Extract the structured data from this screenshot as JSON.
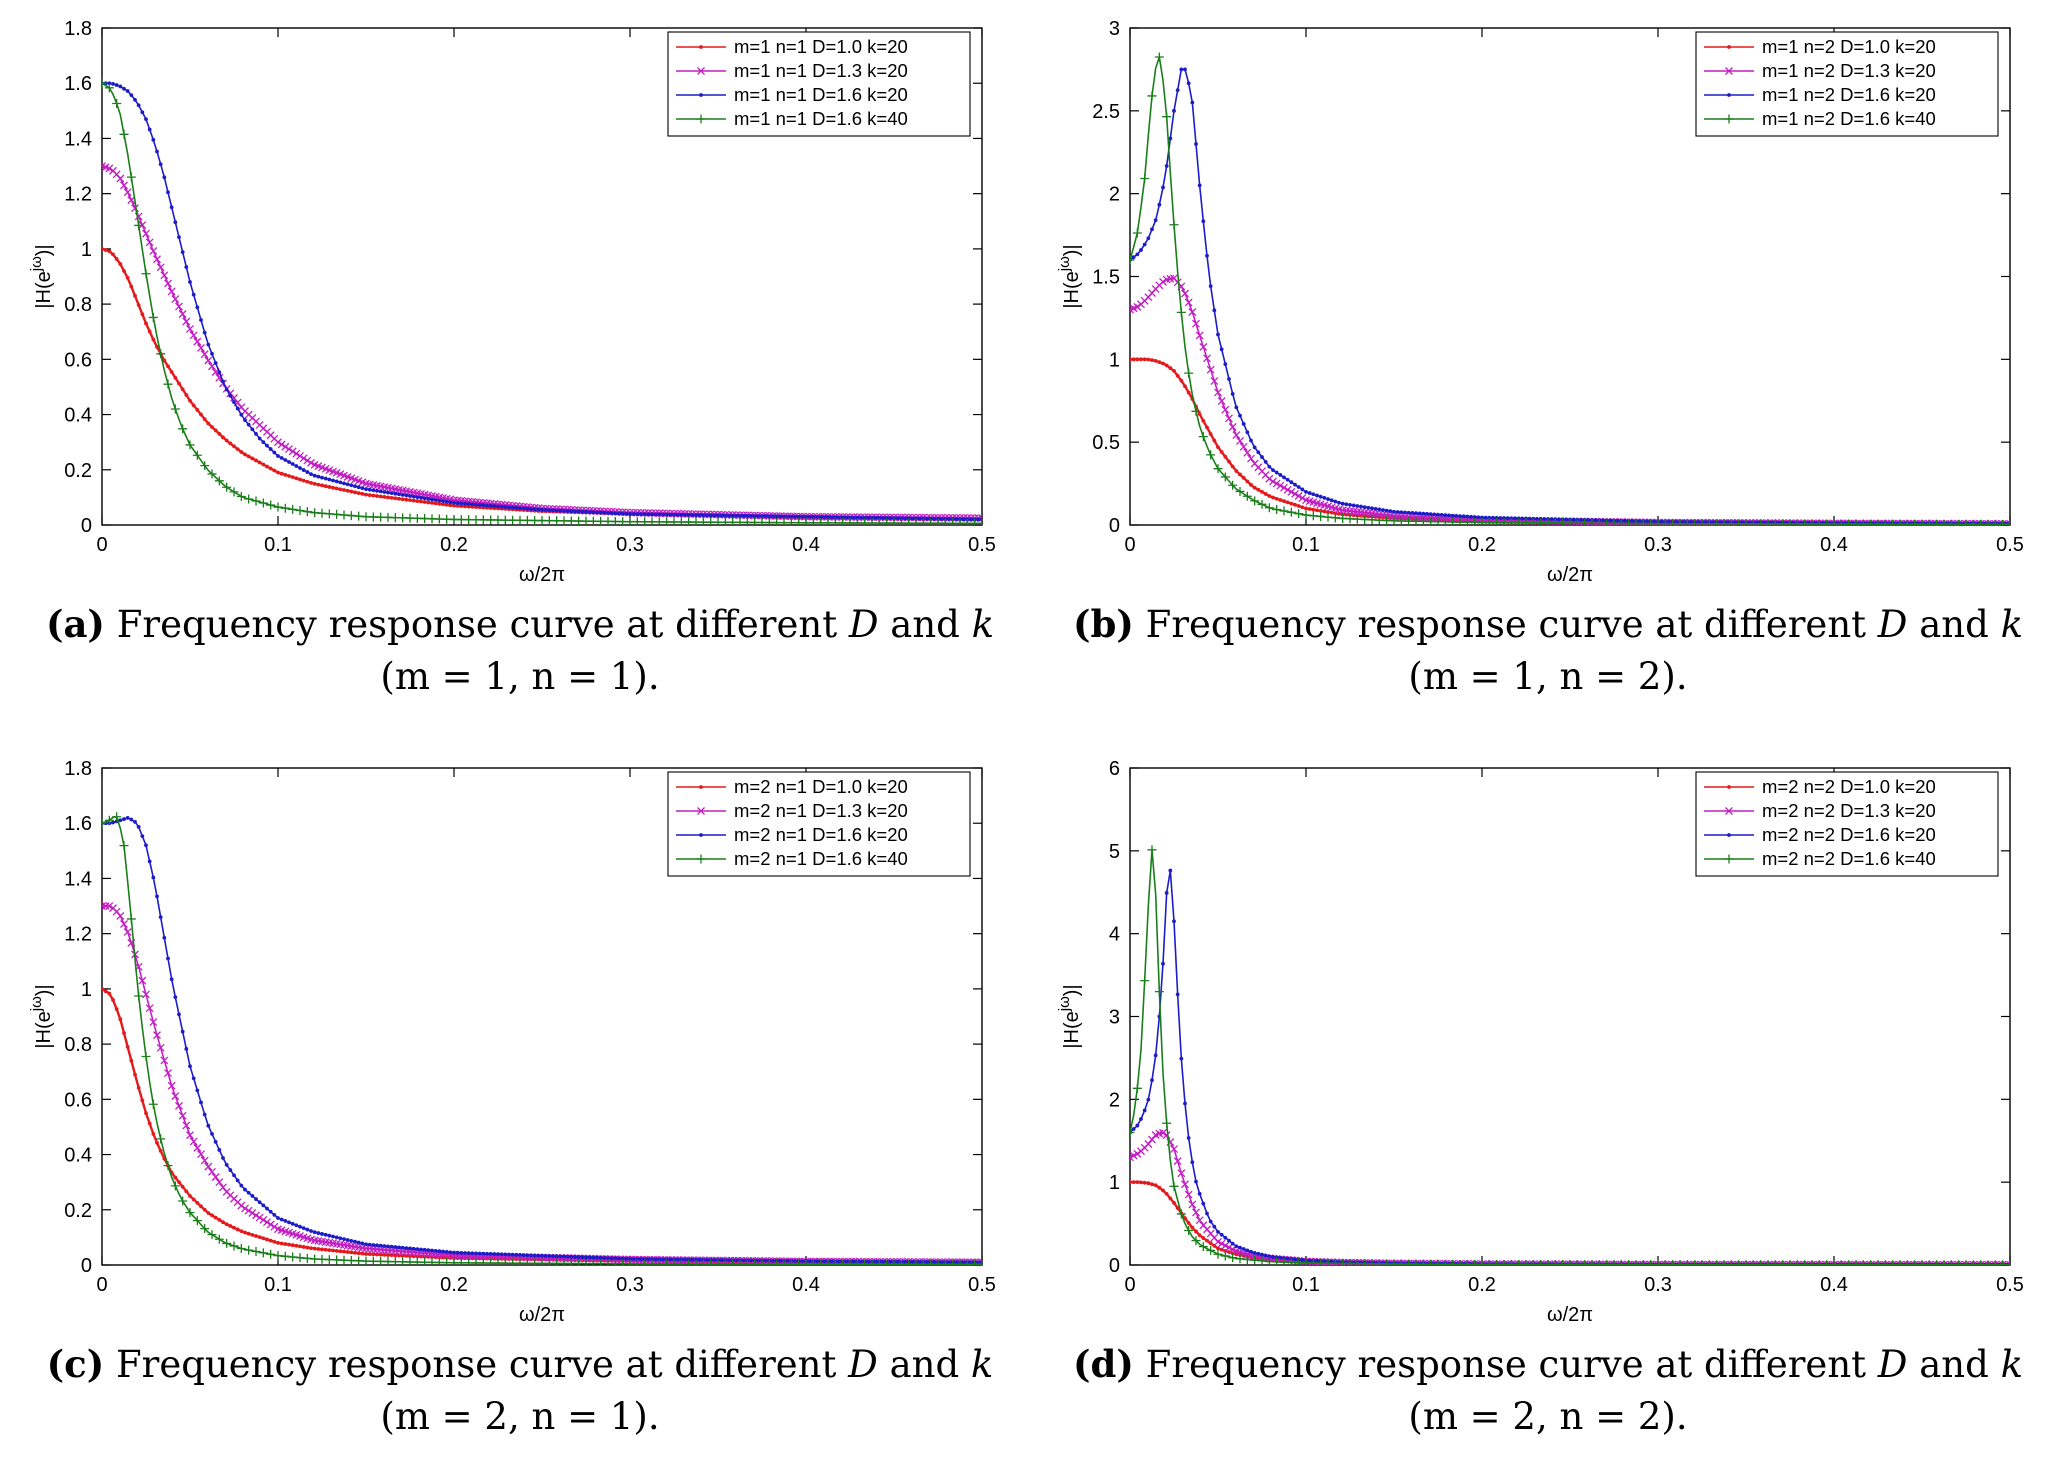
{
  "xlabel": "ω/2π",
  "ylabel": "|H(e",
  "ylabel_sup": "jω",
  "ylabel_end": ")|",
  "caption_mid": "Frequency response curve at different",
  "caption_D": "D",
  "caption_and": "and",
  "caption_k": "k",
  "colors": {
    "red": "#e41a1c",
    "magenta": "#c21fc2",
    "blue": "#1c1cc8",
    "green": "#1a7f1a"
  },
  "chart_data": [
    {
      "panel": "a",
      "label": "(a)",
      "params": "(m = 1, n = 1).",
      "type": "line",
      "xlim": [
        0,
        0.5
      ],
      "ylim": [
        0,
        1.8
      ],
      "xticks": [
        "0",
        "0.1",
        "0.2",
        "0.3",
        "0.4",
        "0.5"
      ],
      "yticks": [
        "0",
        "0.2",
        "0.4",
        "0.6",
        "0.8",
        "1",
        "1.2",
        "1.4",
        "1.6",
        "1.8"
      ],
      "legend_position": "top-right",
      "series": [
        {
          "name": "m=1 n=1 D=1.0 k=20",
          "color": "red",
          "marker": "dot",
          "x": [
            0,
            0.005,
            0.01,
            0.015,
            0.02,
            0.025,
            0.03,
            0.035,
            0.04,
            0.05,
            0.06,
            0.07,
            0.08,
            0.1,
            0.12,
            0.15,
            0.2,
            0.25,
            0.3,
            0.4,
            0.5
          ],
          "y": [
            1.0,
            0.99,
            0.95,
            0.89,
            0.81,
            0.73,
            0.66,
            0.6,
            0.55,
            0.45,
            0.37,
            0.31,
            0.26,
            0.19,
            0.15,
            0.11,
            0.07,
            0.05,
            0.04,
            0.025,
            0.02
          ]
        },
        {
          "name": "m=1 n=1 D=1.3 k=20",
          "color": "magenta",
          "marker": "x",
          "x": [
            0,
            0.005,
            0.01,
            0.015,
            0.02,
            0.03,
            0.04,
            0.05,
            0.06,
            0.07,
            0.08,
            0.1,
            0.12,
            0.15,
            0.2,
            0.25,
            0.3,
            0.4,
            0.5
          ],
          "y": [
            1.3,
            1.29,
            1.26,
            1.2,
            1.13,
            0.98,
            0.84,
            0.71,
            0.6,
            0.5,
            0.42,
            0.3,
            0.22,
            0.15,
            0.09,
            0.06,
            0.045,
            0.03,
            0.025
          ]
        },
        {
          "name": "m=1 n=1 D=1.6 k=20",
          "color": "blue",
          "marker": "dot",
          "x": [
            0,
            0.005,
            0.01,
            0.015,
            0.02,
            0.025,
            0.03,
            0.035,
            0.04,
            0.05,
            0.06,
            0.07,
            0.08,
            0.09,
            0.1,
            0.12,
            0.15,
            0.2,
            0.25,
            0.3,
            0.4,
            0.5
          ],
          "y": [
            1.6,
            1.6,
            1.59,
            1.57,
            1.53,
            1.47,
            1.38,
            1.27,
            1.14,
            0.88,
            0.66,
            0.5,
            0.39,
            0.31,
            0.25,
            0.18,
            0.13,
            0.08,
            0.055,
            0.04,
            0.03,
            0.02
          ]
        },
        {
          "name": "m=1 n=1 D=1.6 k=40",
          "color": "green",
          "marker": "plus",
          "x": [
            0,
            0.005,
            0.01,
            0.015,
            0.02,
            0.025,
            0.03,
            0.035,
            0.04,
            0.045,
            0.05,
            0.06,
            0.07,
            0.08,
            0.1,
            0.12,
            0.15,
            0.2,
            0.3,
            0.4,
            0.5
          ],
          "y": [
            1.6,
            1.58,
            1.5,
            1.33,
            1.12,
            0.91,
            0.72,
            0.57,
            0.45,
            0.36,
            0.29,
            0.2,
            0.14,
            0.1,
            0.065,
            0.045,
            0.03,
            0.02,
            0.012,
            0.008,
            0.006
          ]
        }
      ],
      "legend": [
        "m=1 n=1 D=1.0 k=20",
        "m=1 n=1 D=1.3 k=20",
        "m=1 n=1 D=1.6 k=20",
        "m=1 n=1 D=1.6 k=40"
      ]
    },
    {
      "panel": "b",
      "label": "(b)",
      "params": "(m = 1, n = 2).",
      "type": "line",
      "xlim": [
        0,
        0.5
      ],
      "ylim": [
        0,
        3
      ],
      "xticks": [
        "0",
        "0.1",
        "0.2",
        "0.3",
        "0.4",
        "0.5"
      ],
      "yticks": [
        "0",
        "0.5",
        "1",
        "1.5",
        "2",
        "2.5",
        "3"
      ],
      "legend_position": "top-right",
      "series": [
        {
          "name": "m=1 n=2 D=1.0 k=20",
          "color": "red",
          "marker": "dot",
          "x": [
            0,
            0.005,
            0.01,
            0.015,
            0.02,
            0.025,
            0.03,
            0.035,
            0.04,
            0.05,
            0.06,
            0.07,
            0.08,
            0.1,
            0.12,
            0.15,
            0.2,
            0.3,
            0.4,
            0.5
          ],
          "y": [
            1.0,
            1.0,
            1.0,
            0.99,
            0.97,
            0.93,
            0.86,
            0.77,
            0.66,
            0.47,
            0.33,
            0.23,
            0.17,
            0.1,
            0.065,
            0.04,
            0.025,
            0.012,
            0.008,
            0.006
          ]
        },
        {
          "name": "m=1 n=2 D=1.3 k=20",
          "color": "magenta",
          "marker": "x",
          "x": [
            0,
            0.005,
            0.01,
            0.015,
            0.02,
            0.025,
            0.03,
            0.035,
            0.04,
            0.05,
            0.06,
            0.07,
            0.08,
            0.1,
            0.12,
            0.15,
            0.2,
            0.3,
            0.4,
            0.5
          ],
          "y": [
            1.3,
            1.32,
            1.37,
            1.43,
            1.48,
            1.49,
            1.43,
            1.3,
            1.13,
            0.8,
            0.55,
            0.38,
            0.27,
            0.15,
            0.09,
            0.055,
            0.03,
            0.015,
            0.01,
            0.007
          ]
        },
        {
          "name": "m=1 n=2 D=1.6 k=20",
          "color": "blue",
          "marker": "dot",
          "x": [
            0,
            0.005,
            0.01,
            0.015,
            0.02,
            0.025,
            0.03,
            0.035,
            0.04,
            0.045,
            0.05,
            0.06,
            0.07,
            0.08,
            0.1,
            0.12,
            0.15,
            0.2,
            0.3,
            0.4,
            0.5
          ],
          "y": [
            1.6,
            1.64,
            1.72,
            1.85,
            2.1,
            2.5,
            2.8,
            2.6,
            2.0,
            1.5,
            1.15,
            0.72,
            0.48,
            0.34,
            0.2,
            0.13,
            0.08,
            0.045,
            0.02,
            0.012,
            0.008
          ]
        },
        {
          "name": "m=1 n=2 D=1.6 k=40",
          "color": "green",
          "marker": "plus",
          "x": [
            0,
            0.004,
            0.008,
            0.012,
            0.016,
            0.02,
            0.024,
            0.028,
            0.032,
            0.036,
            0.04,
            0.045,
            0.05,
            0.06,
            0.07,
            0.08,
            0.1,
            0.12,
            0.15,
            0.2,
            0.3,
            0.5
          ],
          "y": [
            1.6,
            1.75,
            2.05,
            2.55,
            2.87,
            2.6,
            1.95,
            1.4,
            1.0,
            0.75,
            0.58,
            0.44,
            0.34,
            0.22,
            0.15,
            0.1,
            0.06,
            0.04,
            0.025,
            0.015,
            0.008,
            0.004
          ]
        }
      ],
      "legend": [
        "m=1 n=2 D=1.0 k=20",
        "m=1 n=2 D=1.3 k=20",
        "m=1 n=2 D=1.6 k=20",
        "m=1 n=2 D=1.6 k=40"
      ]
    },
    {
      "panel": "c",
      "label": "(c)",
      "params": "(m = 2, n = 1).",
      "type": "line",
      "xlim": [
        0,
        0.5
      ],
      "ylim": [
        0,
        1.8
      ],
      "xticks": [
        "0",
        "0.1",
        "0.2",
        "0.3",
        "0.4",
        "0.5"
      ],
      "yticks": [
        "0",
        "0.2",
        "0.4",
        "0.6",
        "0.8",
        "1",
        "1.2",
        "1.4",
        "1.6",
        "1.8"
      ],
      "legend_position": "top-right",
      "series": [
        {
          "name": "m=2 n=1 D=1.0 k=20",
          "color": "red",
          "marker": "dot",
          "x": [
            0,
            0.005,
            0.01,
            0.015,
            0.02,
            0.025,
            0.03,
            0.035,
            0.04,
            0.05,
            0.06,
            0.07,
            0.08,
            0.1,
            0.12,
            0.15,
            0.2,
            0.3,
            0.4,
            0.5
          ],
          "y": [
            1.0,
            0.98,
            0.9,
            0.78,
            0.66,
            0.55,
            0.46,
            0.39,
            0.33,
            0.25,
            0.19,
            0.15,
            0.12,
            0.08,
            0.06,
            0.04,
            0.025,
            0.014,
            0.01,
            0.008
          ]
        },
        {
          "name": "m=2 n=1 D=1.3 k=20",
          "color": "magenta",
          "marker": "x",
          "x": [
            0,
            0.005,
            0.01,
            0.015,
            0.02,
            0.025,
            0.03,
            0.04,
            0.05,
            0.06,
            0.07,
            0.08,
            0.1,
            0.12,
            0.15,
            0.2,
            0.3,
            0.4,
            0.5
          ],
          "y": [
            1.3,
            1.3,
            1.27,
            1.2,
            1.1,
            0.98,
            0.86,
            0.64,
            0.47,
            0.36,
            0.27,
            0.21,
            0.13,
            0.09,
            0.06,
            0.035,
            0.02,
            0.013,
            0.01
          ]
        },
        {
          "name": "m=2 n=1 D=1.6 k=20",
          "color": "blue",
          "marker": "dot",
          "x": [
            0,
            0.005,
            0.01,
            0.015,
            0.02,
            0.025,
            0.03,
            0.035,
            0.04,
            0.05,
            0.06,
            0.07,
            0.08,
            0.1,
            0.12,
            0.15,
            0.2,
            0.3,
            0.4,
            0.5
          ],
          "y": [
            1.6,
            1.6,
            1.61,
            1.62,
            1.6,
            1.52,
            1.38,
            1.2,
            1.02,
            0.72,
            0.51,
            0.37,
            0.28,
            0.17,
            0.12,
            0.075,
            0.045,
            0.022,
            0.014,
            0.01
          ]
        },
        {
          "name": "m=2 n=1 D=1.6 k=40",
          "color": "green",
          "marker": "plus",
          "x": [
            0,
            0.004,
            0.008,
            0.012,
            0.016,
            0.02,
            0.024,
            0.028,
            0.032,
            0.036,
            0.04,
            0.045,
            0.05,
            0.06,
            0.07,
            0.08,
            0.1,
            0.12,
            0.15,
            0.2,
            0.3,
            0.5
          ],
          "y": [
            1.6,
            1.61,
            1.63,
            1.55,
            1.3,
            1.02,
            0.8,
            0.62,
            0.49,
            0.39,
            0.31,
            0.24,
            0.19,
            0.12,
            0.08,
            0.058,
            0.034,
            0.022,
            0.014,
            0.008,
            0.004,
            0.002
          ]
        }
      ],
      "legend": [
        "m=2 n=1 D=1.0 k=20",
        "m=2 n=1 D=1.3 k=20",
        "m=2 n=1 D=1.6 k=20",
        "m=2 n=1 D=1.6 k=40"
      ]
    },
    {
      "panel": "d",
      "label": "(d)",
      "params": "(m = 2, n = 2).",
      "type": "line",
      "xlim": [
        0,
        0.5
      ],
      "ylim": [
        0,
        6
      ],
      "xticks": [
        "0",
        "0.1",
        "0.2",
        "0.3",
        "0.4",
        "0.5"
      ],
      "yticks": [
        "0",
        "1",
        "2",
        "3",
        "4",
        "5",
        "6"
      ],
      "legend_position": "top-right",
      "series": [
        {
          "name": "m=2 n=2 D=1.0 k=20",
          "color": "red",
          "marker": "dot",
          "x": [
            0,
            0.005,
            0.01,
            0.015,
            0.02,
            0.025,
            0.03,
            0.035,
            0.04,
            0.05,
            0.06,
            0.07,
            0.08,
            0.1,
            0.12,
            0.15,
            0.2,
            0.3,
            0.5
          ],
          "y": [
            1.0,
            1.0,
            0.99,
            0.96,
            0.88,
            0.75,
            0.6,
            0.46,
            0.35,
            0.2,
            0.13,
            0.09,
            0.065,
            0.04,
            0.028,
            0.018,
            0.01,
            0.005,
            0.003
          ]
        },
        {
          "name": "m=2 n=2 D=1.3 k=20",
          "color": "magenta",
          "marker": "x",
          "x": [
            0,
            0.005,
            0.01,
            0.015,
            0.02,
            0.025,
            0.03,
            0.035,
            0.04,
            0.05,
            0.06,
            0.07,
            0.08,
            0.1,
            0.12,
            0.15,
            0.2,
            0.3,
            0.5
          ],
          "y": [
            1.3,
            1.35,
            1.45,
            1.58,
            1.6,
            1.4,
            1.05,
            0.75,
            0.52,
            0.28,
            0.17,
            0.11,
            0.08,
            0.045,
            0.03,
            0.02,
            0.012,
            0.006,
            0.003
          ]
        },
        {
          "name": "m=2 n=2 D=1.6 k=20",
          "color": "blue",
          "marker": "dot",
          "x": [
            0,
            0.005,
            0.01,
            0.014,
            0.018,
            0.02,
            0.022,
            0.024,
            0.026,
            0.028,
            0.03,
            0.034,
            0.038,
            0.045,
            0.05,
            0.06,
            0.07,
            0.08,
            0.1,
            0.12,
            0.15,
            0.2,
            0.3,
            0.5
          ],
          "y": [
            1.6,
            1.7,
            1.95,
            2.4,
            3.3,
            4.2,
            4.9,
            4.6,
            3.7,
            2.9,
            2.2,
            1.4,
            0.95,
            0.55,
            0.4,
            0.23,
            0.15,
            0.1,
            0.055,
            0.035,
            0.022,
            0.012,
            0.006,
            0.003
          ]
        },
        {
          "name": "m=2 n=2 D=1.6 k=40",
          "color": "green",
          "marker": "plus",
          "x": [
            0,
            0.003,
            0.006,
            0.009,
            0.011,
            0.013,
            0.015,
            0.017,
            0.019,
            0.022,
            0.025,
            0.03,
            0.035,
            0.04,
            0.05,
            0.06,
            0.08,
            0.1,
            0.15,
            0.2,
            0.3,
            0.5
          ],
          "y": [
            1.6,
            1.9,
            2.5,
            3.7,
            4.6,
            5.15,
            4.3,
            3.1,
            2.2,
            1.4,
            0.95,
            0.55,
            0.35,
            0.24,
            0.13,
            0.08,
            0.04,
            0.025,
            0.012,
            0.007,
            0.004,
            0.002
          ]
        }
      ],
      "legend": [
        "m=2 n=2 D=1.0 k=20",
        "m=2 n=2 D=1.3 k=20",
        "m=2 n=2 D=1.6 k=20",
        "m=2 n=2 D=1.6 k=40"
      ]
    }
  ]
}
